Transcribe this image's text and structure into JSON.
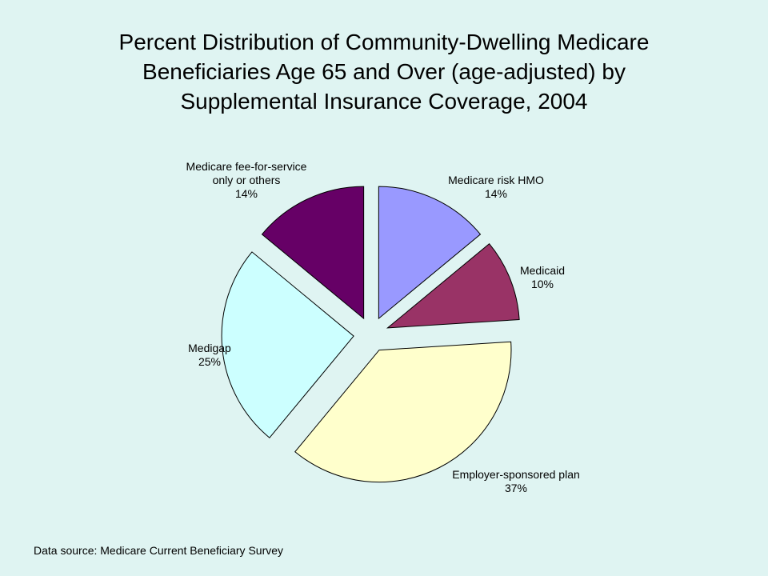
{
  "title_lines": [
    "Percent Distribution of Community-Dwelling Medicare",
    "Beneficiaries Age 65 and Over (age-adjusted) by",
    "Supplemental Insurance Coverage, 2004"
  ],
  "source_text": "Data source: Medicare Current Beneficiary Survey",
  "chart_data": {
    "type": "pie",
    "title": "Percent Distribution of Community-Dwelling Medicare Beneficiaries Age 65 and Over (age-adjusted) by Supplemental Insurance Coverage, 2004",
    "exploded": true,
    "slices": [
      {
        "label": [
          "Medicare risk HMO"
        ],
        "value_label": "14%",
        "value": 14,
        "color": "#9999ff"
      },
      {
        "label": [
          "Medicaid"
        ],
        "value_label": "10%",
        "value": 10,
        "color": "#993366"
      },
      {
        "label": [
          "Employer-sponsored plan"
        ],
        "value_label": "37%",
        "value": 37,
        "color": "#ffffcc"
      },
      {
        "label": [
          "Medigap"
        ],
        "value_label": "25%",
        "value": 25,
        "color": "#ccffff"
      },
      {
        "label": [
          "Medicare fee-for-service",
          "only or others"
        ],
        "value_label": "14%",
        "value": 14,
        "color": "#660066"
      }
    ]
  }
}
